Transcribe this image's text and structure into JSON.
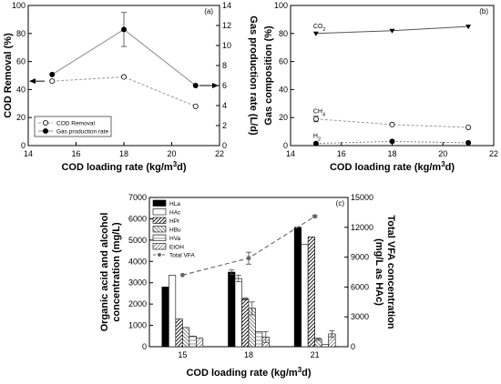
{
  "chart_data": [
    {
      "panel": "(a)",
      "type": "line",
      "xlabel": "COD loading rate (kg/m3d)",
      "ylabel": "COD Removal (%)",
      "y2label": "Gas production rate (L/d)",
      "x_ticks": [
        14,
        16,
        18,
        20,
        22
      ],
      "xlim": [
        14,
        22
      ],
      "y_ticks": [
        0,
        20,
        40,
        60,
        80,
        100
      ],
      "ylim": [
        0,
        100
      ],
      "y2_ticks": [
        0,
        2,
        4,
        6,
        8,
        10,
        12,
        14
      ],
      "y2lim": [
        0,
        14
      ],
      "series": [
        {
          "name": "COD Removal",
          "axis": "left",
          "marker": "open-circle",
          "x": [
            15,
            18,
            21
          ],
          "y": [
            46,
            49,
            28
          ],
          "err": [
            1,
            1,
            1
          ]
        },
        {
          "name": "Gas production rate",
          "axis": "right",
          "marker": "filled-circle",
          "x": [
            15,
            18,
            21
          ],
          "y": [
            7.1,
            11.6,
            6.0
          ],
          "err": [
            0.2,
            1.7,
            0.2
          ]
        }
      ]
    },
    {
      "panel": "(b)",
      "type": "line",
      "xlabel": "COD loading rate (kg/m3d)",
      "ylabel": "Gas composition (%)",
      "x_ticks": [
        14,
        16,
        18,
        20,
        22
      ],
      "xlim": [
        14,
        22
      ],
      "y_ticks": [
        0,
        20,
        40,
        60,
        80,
        100
      ],
      "ylim": [
        0,
        100
      ],
      "series": [
        {
          "name": "CO2",
          "marker": "filled-triangle",
          "x": [
            15,
            18,
            21
          ],
          "y": [
            80,
            82,
            85
          ]
        },
        {
          "name": "CH4",
          "marker": "open-circle",
          "x": [
            15,
            18,
            21
          ],
          "y": [
            19,
            15,
            13
          ],
          "err": [
            2,
            1,
            1
          ]
        },
        {
          "name": "H2",
          "marker": "filled-circle",
          "x": [
            15,
            18,
            21
          ],
          "y": [
            1.5,
            3,
            2
          ]
        }
      ]
    },
    {
      "panel": "(c)",
      "type": "bar",
      "xlabel": "COD loading rate (kg/m3d)",
      "ylabel": "Organic acid and alcohol concentration (mg/L)",
      "ylabel_line1": "Organic acid and alcohol",
      "ylabel_line2": "concentration (mg/L)",
      "y2label": "Total VFA concentration (mg/L as HAc)",
      "y2label_line1": "Total VFA concentration",
      "y2label_line2": "(mg/L as HAc)",
      "categories": [
        "15",
        "18",
        "21"
      ],
      "y_ticks": [
        0,
        1000,
        2000,
        3000,
        4000,
        5000,
        6000,
        7000
      ],
      "ylim": [
        0,
        7000
      ],
      "y2_ticks": [
        0,
        3000,
        6000,
        9000,
        12000,
        15000
      ],
      "y2lim": [
        0,
        15000
      ],
      "series": [
        {
          "name": "HLa",
          "values": [
            2800,
            3500,
            5600
          ],
          "err": [
            0,
            100,
            0
          ]
        },
        {
          "name": "HAc",
          "values": [
            3350,
            3200,
            4800
          ],
          "err": [
            0,
            150,
            0
          ]
        },
        {
          "name": "HPr",
          "values": [
            1300,
            2250,
            5150
          ],
          "err": [
            0,
            50,
            0
          ]
        },
        {
          "name": "HBu",
          "values": [
            900,
            1800,
            350
          ],
          "err": [
            0,
            300,
            50
          ]
        },
        {
          "name": "HVa",
          "values": [
            500,
            700,
            100
          ],
          "err": [
            0,
            0,
            0
          ]
        },
        {
          "name": "EtOH",
          "values": [
            400,
            450,
            600
          ],
          "err": [
            0,
            250,
            150
          ]
        }
      ],
      "line_series": {
        "name": "Total VFA",
        "axis": "right",
        "values": [
          7200,
          8900,
          13100
        ],
        "err": [
          0,
          600,
          100
        ]
      }
    }
  ]
}
